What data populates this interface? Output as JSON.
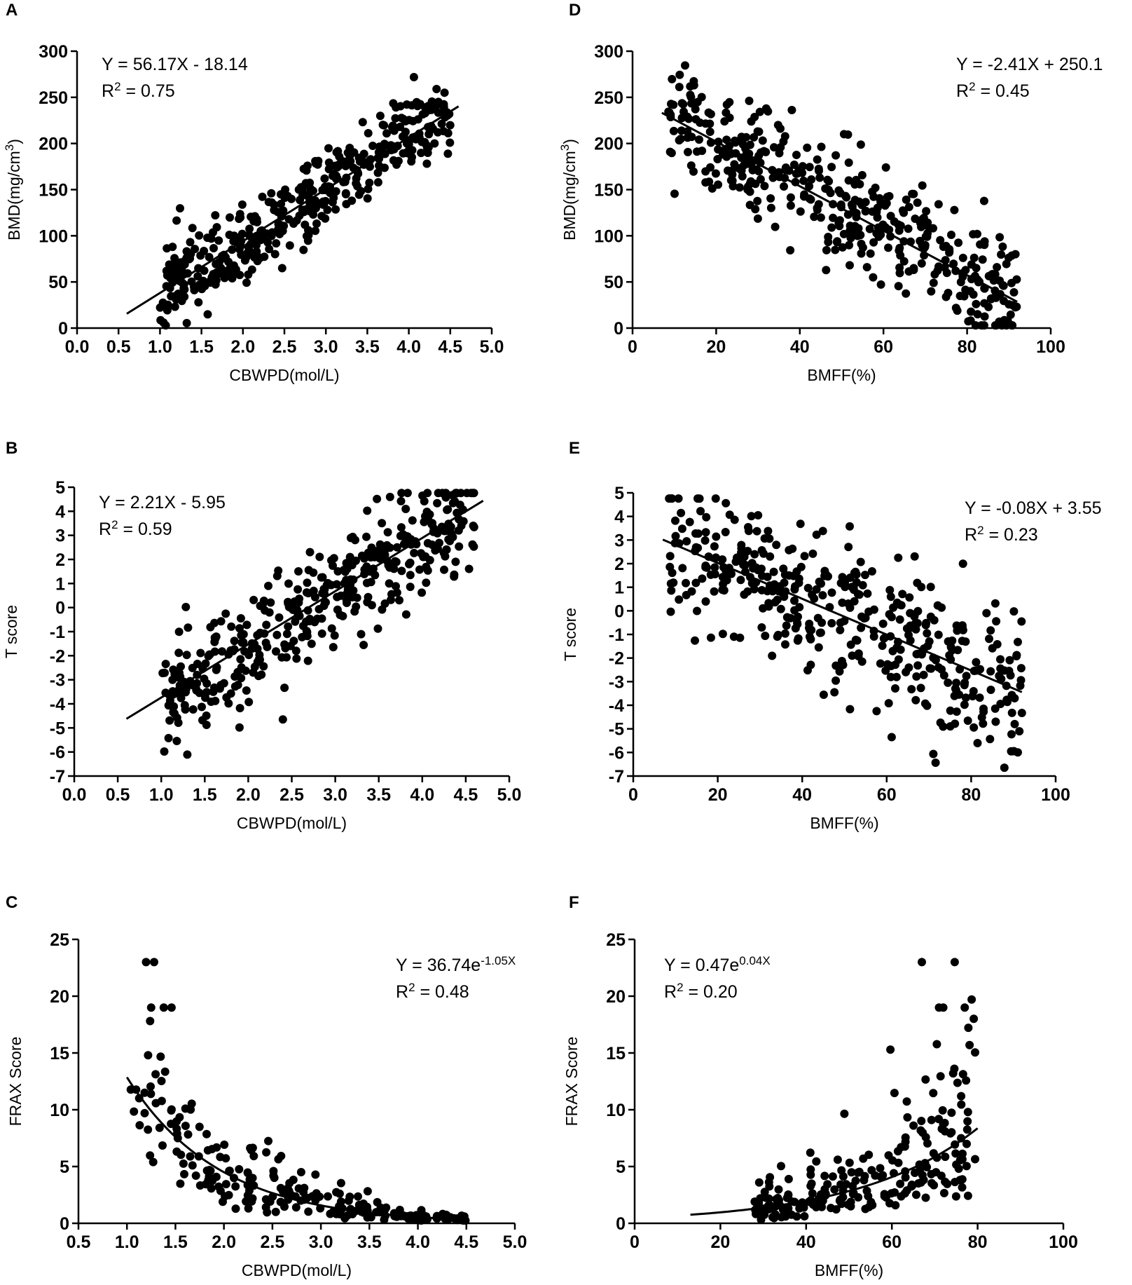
{
  "figure": {
    "layout": "3 rows x 2 columns"
  },
  "chart_data": [
    {
      "panel": "A",
      "type": "scatter",
      "xlabel": "CBWPD(mol/L)",
      "ylabel_main": "BMD(mg/cm",
      "ylabel_sup": "3",
      "ylabel_end": ")",
      "xlim": [
        0,
        5
      ],
      "ylim": [
        0,
        300
      ],
      "xticks": [
        "0.0",
        "0.5",
        "1.0",
        "1.5",
        "2.0",
        "2.5",
        "3.0",
        "3.5",
        "4.0",
        "4.5",
        "5.0"
      ],
      "xtick_values": [
        0,
        0.5,
        1,
        1.5,
        2,
        2.5,
        3,
        3.5,
        4,
        4.5,
        5
      ],
      "yticks": [
        "0",
        "50",
        "100",
        "150",
        "200",
        "250",
        "300"
      ],
      "ytick_values": [
        0,
        50,
        100,
        150,
        200,
        250,
        300
      ],
      "equation": "Y = 56.17X - 18.14",
      "r2_prefix": "R",
      "r2_sup": "2",
      "r2_value": " = 0.75",
      "annotation_position": "top-left",
      "fit": {
        "kind": "linear",
        "slope": 56.17,
        "intercept": -18.14,
        "x_range": [
          0.6,
          4.6
        ]
      },
      "points_estimate": {
        "n": 420,
        "x_range": [
          1.0,
          4.5
        ],
        "noise": 22,
        "seed": 11
      }
    },
    {
      "panel": "B",
      "type": "scatter",
      "xlabel": "CBWPD(mol/L)",
      "ylabel_main": "T score",
      "ylabel_sup": "",
      "ylabel_end": "",
      "xlim": [
        0,
        5
      ],
      "ylim": [
        -7,
        5
      ],
      "xticks": [
        "0.0",
        "0.5",
        "1.0",
        "1.5",
        "2.0",
        "2.5",
        "3.0",
        "3.5",
        "4.0",
        "4.5",
        "5.0"
      ],
      "xtick_values": [
        0,
        0.5,
        1,
        1.5,
        2,
        2.5,
        3,
        3.5,
        4,
        4.5,
        5
      ],
      "yticks": [
        "-7",
        "-6",
        "-5",
        "-4",
        "-3",
        "-2",
        "-1",
        "0",
        "1",
        "2",
        "3",
        "4",
        "5"
      ],
      "ytick_values": [
        -7,
        -6,
        -5,
        -4,
        -3,
        -2,
        -1,
        0,
        1,
        2,
        3,
        4,
        5
      ],
      "equation": "Y = 2.21X - 5.95",
      "r2_prefix": "R",
      "r2_sup": "2",
      "r2_value": " = 0.59",
      "annotation_position": "top-left",
      "fit": {
        "kind": "linear",
        "slope": 2.21,
        "intercept": -5.95,
        "x_range": [
          0.6,
          4.7
        ]
      },
      "points_estimate": {
        "n": 420,
        "x_range": [
          1.0,
          4.6
        ],
        "noise": 1.1,
        "seed": 23
      }
    },
    {
      "panel": "C",
      "type": "scatter",
      "xlabel": "CBWPD(mol/L)",
      "ylabel_main": "FRAX Score",
      "ylabel_sup": "",
      "ylabel_end": "",
      "xlim": [
        0.5,
        5
      ],
      "ylim": [
        0,
        25
      ],
      "xticks": [
        "0.5",
        "1.0",
        "1.5",
        "2.0",
        "2.5",
        "3.0",
        "3.5",
        "4.0",
        "4.5",
        "5.0"
      ],
      "xtick_values": [
        0.5,
        1,
        1.5,
        2,
        2.5,
        3,
        3.5,
        4,
        4.5,
        5
      ],
      "yticks": [
        "0",
        "5",
        "10",
        "15",
        "20",
        "25"
      ],
      "ytick_values": [
        0,
        5,
        10,
        15,
        20,
        25
      ],
      "equation_main": "Y = 36.74e",
      "equation_sup": "-1.05X",
      "r2_prefix": "R",
      "r2_sup": "2",
      "r2_value": " = 0.48",
      "annotation_position": "top-right",
      "fit": {
        "kind": "exp",
        "a": 36.74,
        "b": -1.05,
        "x_range": [
          1.0,
          4.5
        ]
      },
      "points_estimate": {
        "n": 230,
        "x_range": [
          1.0,
          4.5
        ],
        "noise": 0.45,
        "seed": 37
      },
      "highlighted_points": [
        {
          "x": 1.28,
          "y": 23
        },
        {
          "x": 1.25,
          "y": 19
        },
        {
          "x": 1.38,
          "y": 19
        },
        {
          "x": 1.46,
          "y": 19
        }
      ]
    },
    {
      "panel": "D",
      "type": "scatter",
      "xlabel": "BMFF(%)",
      "ylabel_main": "BMD(mg/cm",
      "ylabel_sup": "3",
      "ylabel_end": ")",
      "xlim": [
        0,
        100
      ],
      "ylim": [
        0,
        300
      ],
      "xticks": [
        "0",
        "20",
        "40",
        "60",
        "80",
        "100"
      ],
      "xtick_values": [
        0,
        20,
        40,
        60,
        80,
        100
      ],
      "yticks": [
        "0",
        "50",
        "100",
        "150",
        "200",
        "250",
        "300"
      ],
      "ytick_values": [
        0,
        50,
        100,
        150,
        200,
        250,
        300
      ],
      "equation": "Y = -2.41X + 250.1",
      "r2_prefix": "R",
      "r2_sup": "2",
      "r2_value": " = 0.45",
      "annotation_position": "top-right",
      "fit": {
        "kind": "linear",
        "slope": -2.41,
        "intercept": 250.1,
        "x_range": [
          7,
          92
        ]
      },
      "points_estimate": {
        "n": 420,
        "x_range": [
          8,
          92
        ],
        "noise": 32,
        "seed": 41
      }
    },
    {
      "panel": "E",
      "type": "scatter",
      "xlabel": "BMFF(%)",
      "ylabel_main": "T score",
      "ylabel_sup": "",
      "ylabel_end": "",
      "xlim": [
        0,
        100
      ],
      "ylim": [
        -7,
        5
      ],
      "xticks": [
        "0",
        "20",
        "40",
        "60",
        "80",
        "100"
      ],
      "xtick_values": [
        0,
        20,
        40,
        60,
        80,
        100
      ],
      "yticks": [
        "-7",
        "-6",
        "-5",
        "-4",
        "-3",
        "-2",
        "-1",
        "0",
        "1",
        "2",
        "3",
        "4",
        "5"
      ],
      "ytick_values": [
        -7,
        -6,
        -5,
        -4,
        -3,
        -2,
        -1,
        0,
        1,
        2,
        3,
        4,
        5
      ],
      "equation": "Y = -0.08X + 3.55",
      "r2_prefix": "R",
      "r2_sup": "2",
      "r2_value": " = 0.23",
      "annotation_position": "top-right",
      "fit": {
        "kind": "linear",
        "slope": -0.076,
        "intercept": 3.55,
        "x_range": [
          7,
          92
        ]
      },
      "points_estimate": {
        "n": 420,
        "x_range": [
          8,
          92
        ],
        "noise": 1.6,
        "seed": 53
      }
    },
    {
      "panel": "F",
      "type": "scatter",
      "xlabel": "BMFF(%)",
      "ylabel_main": "FRAX Score",
      "ylabel_sup": "",
      "ylabel_end": "",
      "xlim": [
        0,
        100
      ],
      "ylim": [
        0,
        25
      ],
      "xticks": [
        "0",
        "20",
        "40",
        "60",
        "80",
        "100"
      ],
      "xtick_values": [
        0,
        20,
        40,
        60,
        80,
        100
      ],
      "yticks": [
        "0",
        "5",
        "10",
        "15",
        "20",
        "25"
      ],
      "ytick_values": [
        0,
        5,
        10,
        15,
        20,
        25
      ],
      "equation_main": "Y = 0.47e",
      "equation_sup": "0.04X",
      "r2_prefix": "R",
      "r2_sup": "2",
      "r2_value": " = 0.20",
      "annotation_position": "top-left",
      "fit": {
        "kind": "exp",
        "a": 0.47,
        "b": 0.036,
        "x_range": [
          13,
          80
        ]
      },
      "points_estimate": {
        "n": 230,
        "x_range": [
          28,
          80
        ],
        "noise": 0.5,
        "seed": 67
      },
      "highlighted_points": [
        {
          "x": 67,
          "y": 23
        },
        {
          "x": 71,
          "y": 19
        },
        {
          "x": 72,
          "y": 19
        },
        {
          "x": 77,
          "y": 19
        }
      ]
    }
  ]
}
